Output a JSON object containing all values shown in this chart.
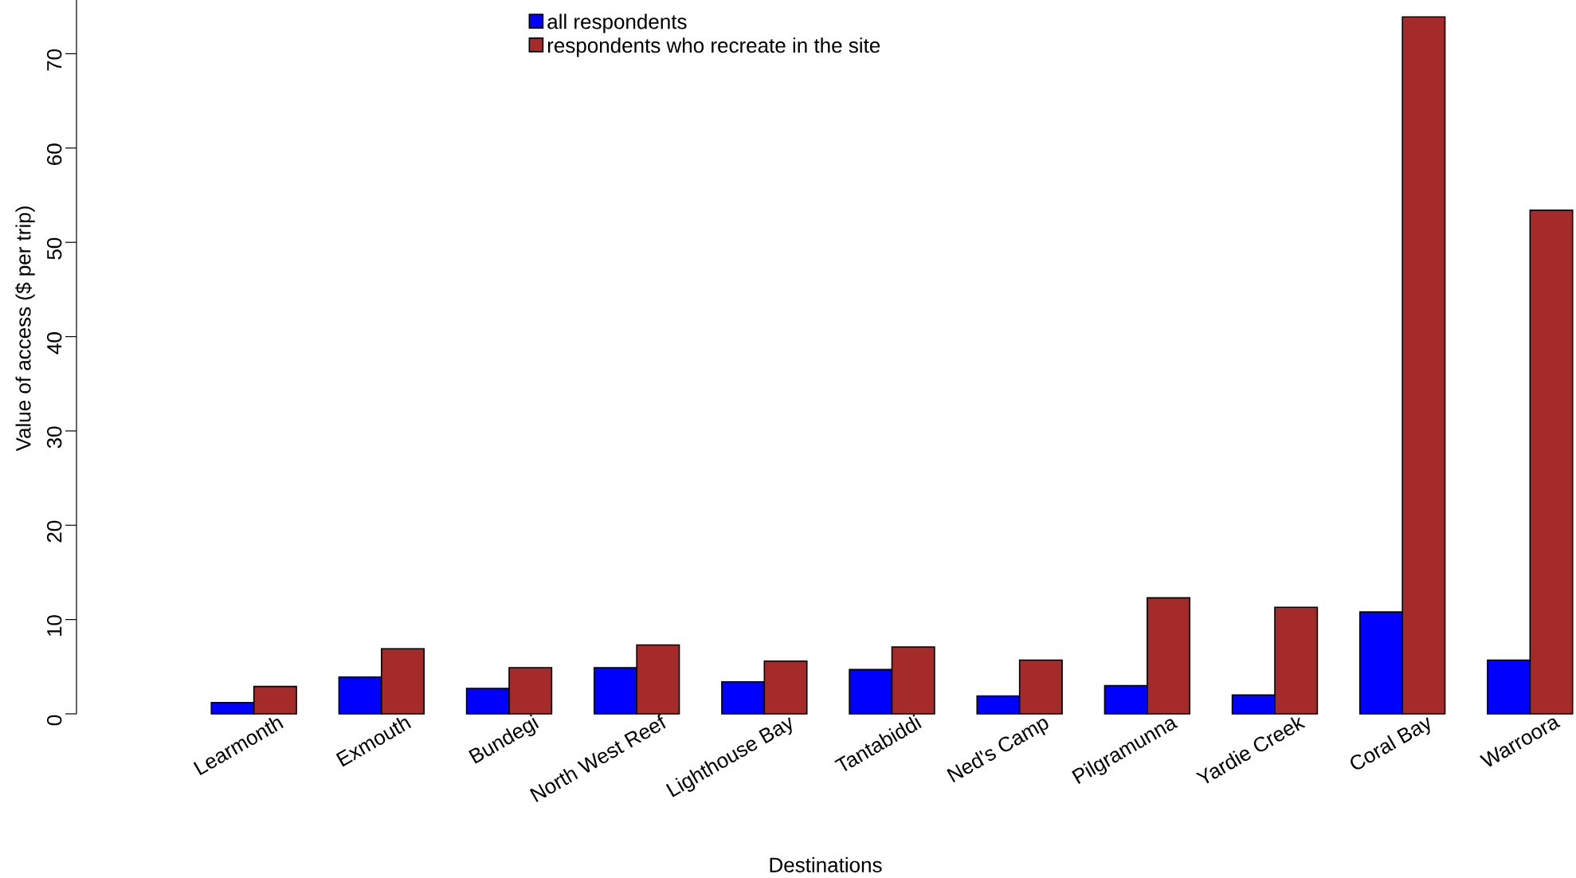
{
  "chart_data": {
    "type": "bar",
    "xlabel": "Destinations",
    "ylabel": "Value of access ($ per trip)",
    "categories": [
      "Learmonth",
      "Exmouth",
      "Bundegi",
      "North West Reef",
      "Lighthouse Bay",
      "Tantabiddi",
      "Ned's Camp",
      "Pilgramunna",
      "Yardie Creek",
      "Coral Bay",
      "Warroora"
    ],
    "series": [
      {
        "name": "all respondents",
        "color": "#0000ff",
        "values": [
          1.2,
          3.9,
          2.7,
          4.9,
          3.4,
          4.7,
          1.9,
          3.0,
          2.0,
          10.8,
          5.7
        ]
      },
      {
        "name": "respondents who recreate in the site",
        "color": "#a52a2a",
        "values": [
          2.9,
          6.9,
          4.9,
          7.3,
          5.6,
          7.1,
          5.7,
          12.3,
          11.3,
          73.9,
          53.4
        ]
      }
    ],
    "ylim": [
      0,
      75.7
    ],
    "yticks": [
      0,
      10,
      20,
      30,
      40,
      50,
      60,
      70
    ],
    "legend": "top"
  }
}
